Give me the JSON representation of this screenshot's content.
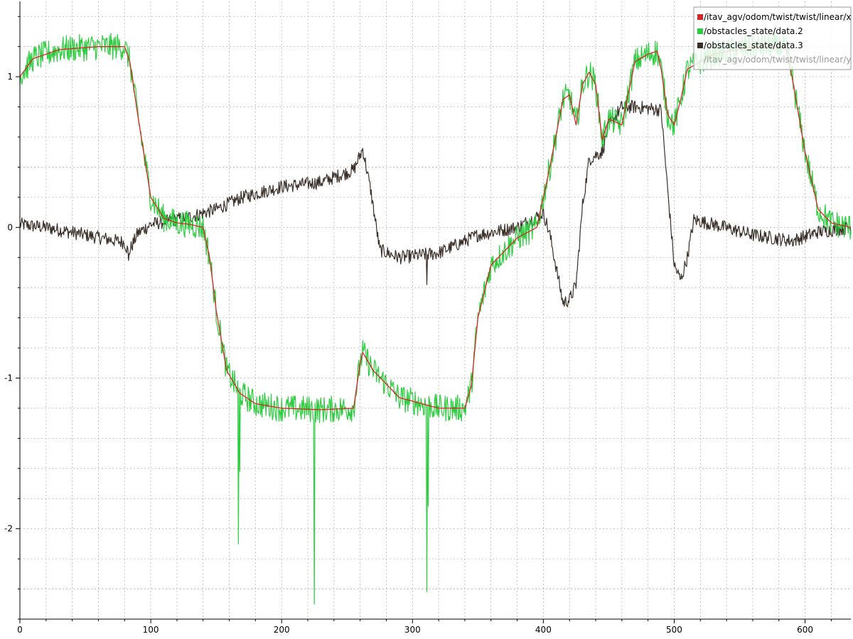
{
  "chart_data": {
    "type": "line",
    "title": "",
    "xlabel": "",
    "ylabel": "",
    "xlim": [
      0,
      635
    ],
    "ylim": [
      -2.6,
      1.5
    ],
    "grid": true,
    "legend_position": "top-right",
    "x_ticks": [
      0,
      100,
      200,
      300,
      400,
      500,
      600
    ],
    "y_ticks": [
      -2,
      -1,
      0,
      1
    ],
    "series": [
      {
        "name": "/itav_agv/odom/twist/twist/linear/x",
        "color": "#d62728",
        "visible": true,
        "noise": 0,
        "x": [
          0,
          10,
          30,
          60,
          80,
          84,
          90,
          100,
          110,
          120,
          130,
          140,
          145,
          150,
          158,
          168,
          180,
          200,
          230,
          255,
          260,
          262,
          270,
          290,
          320,
          340,
          345,
          350,
          360,
          380,
          395,
          405,
          415,
          420,
          425,
          430,
          435,
          440,
          445,
          450,
          460,
          470,
          480,
          487,
          490,
          495,
          500,
          505,
          510,
          530,
          560,
          585,
          590,
          600,
          610,
          620,
          635
        ],
        "y": [
          1.0,
          1.12,
          1.18,
          1.2,
          1.2,
          1.1,
          0.75,
          0.2,
          0.06,
          0.03,
          0.02,
          0.0,
          -0.2,
          -0.55,
          -0.95,
          -1.1,
          -1.17,
          -1.2,
          -1.21,
          -1.2,
          -0.9,
          -0.83,
          -0.95,
          -1.13,
          -1.2,
          -1.2,
          -1.05,
          -0.6,
          -0.25,
          -0.07,
          0.0,
          0.4,
          0.85,
          0.88,
          0.68,
          0.95,
          1.03,
          0.95,
          0.58,
          0.72,
          0.68,
          1.1,
          1.15,
          1.17,
          1.05,
          0.75,
          0.68,
          0.85,
          1.05,
          1.15,
          1.2,
          1.2,
          1.0,
          0.5,
          0.12,
          0.03,
          0.0
        ]
      },
      {
        "name": "/obstacles_state/data.2",
        "color": "#2ecc40",
        "visible": true,
        "noise": 0.09,
        "x": [
          0,
          10,
          30,
          60,
          80,
          84,
          90,
          100,
          110,
          120,
          130,
          140,
          145,
          150,
          158,
          168,
          180,
          200,
          230,
          255,
          260,
          262,
          270,
          290,
          320,
          340,
          345,
          350,
          360,
          380,
          395,
          405,
          415,
          420,
          425,
          430,
          435,
          440,
          445,
          450,
          460,
          470,
          480,
          487,
          490,
          495,
          500,
          505,
          510,
          530,
          560,
          585,
          590,
          600,
          610,
          620,
          635
        ],
        "y": [
          1.0,
          1.12,
          1.18,
          1.2,
          1.2,
          1.1,
          0.75,
          0.2,
          0.06,
          0.03,
          0.02,
          0.0,
          -0.2,
          -0.55,
          -0.95,
          -1.1,
          -1.17,
          -1.2,
          -1.21,
          -1.2,
          -0.9,
          -0.83,
          -0.95,
          -1.13,
          -1.2,
          -1.2,
          -1.05,
          -0.6,
          -0.25,
          -0.07,
          0.0,
          0.4,
          0.85,
          0.88,
          0.68,
          0.95,
          1.03,
          0.95,
          0.58,
          0.72,
          0.68,
          1.1,
          1.15,
          1.17,
          1.05,
          0.75,
          0.68,
          0.85,
          1.05,
          1.15,
          1.2,
          1.2,
          1.0,
          0.5,
          0.12,
          0.03,
          0.0
        ],
        "spikes": [
          {
            "x": 167,
            "y": -2.1
          },
          {
            "x": 168,
            "y": -1.62
          },
          {
            "x": 225,
            "y": -2.5
          },
          {
            "x": 311,
            "y": -2.42
          },
          {
            "x": 312,
            "y": -1.85
          }
        ]
      },
      {
        "name": "/obstacles_state/data.3",
        "color": "#3b3029",
        "visible": true,
        "noise": 0.045,
        "x": [
          0,
          20,
          50,
          80,
          83,
          90,
          100,
          130,
          150,
          170,
          200,
          230,
          255,
          262,
          268,
          275,
          290,
          320,
          350,
          380,
          395,
          400,
          405,
          415,
          420,
          425,
          430,
          435,
          440,
          445,
          450,
          460,
          470,
          490,
          495,
          500,
          505,
          510,
          515,
          530,
          560,
          590,
          610,
          635
        ],
        "y": [
          0.02,
          0.0,
          -0.05,
          -0.1,
          -0.17,
          -0.04,
          0.02,
          0.07,
          0.12,
          0.2,
          0.27,
          0.3,
          0.38,
          0.52,
          0.25,
          -0.15,
          -0.2,
          -0.17,
          -0.05,
          0.0,
          0.07,
          0.1,
          -0.05,
          -0.5,
          -0.48,
          -0.38,
          0.15,
          0.45,
          0.48,
          0.5,
          0.68,
          0.8,
          0.8,
          0.78,
          0.25,
          -0.25,
          -0.35,
          -0.2,
          0.05,
          0.02,
          -0.05,
          -0.09,
          -0.03,
          0.0
        ],
        "spikes": [
          {
            "x": 83,
            "y": -0.22
          },
          {
            "x": 311,
            "y": -0.38
          }
        ]
      },
      {
        "name": "/itav_agv/odom/twist/twist/linear/y",
        "color": "#9a9a9a",
        "visible": false
      }
    ]
  }
}
